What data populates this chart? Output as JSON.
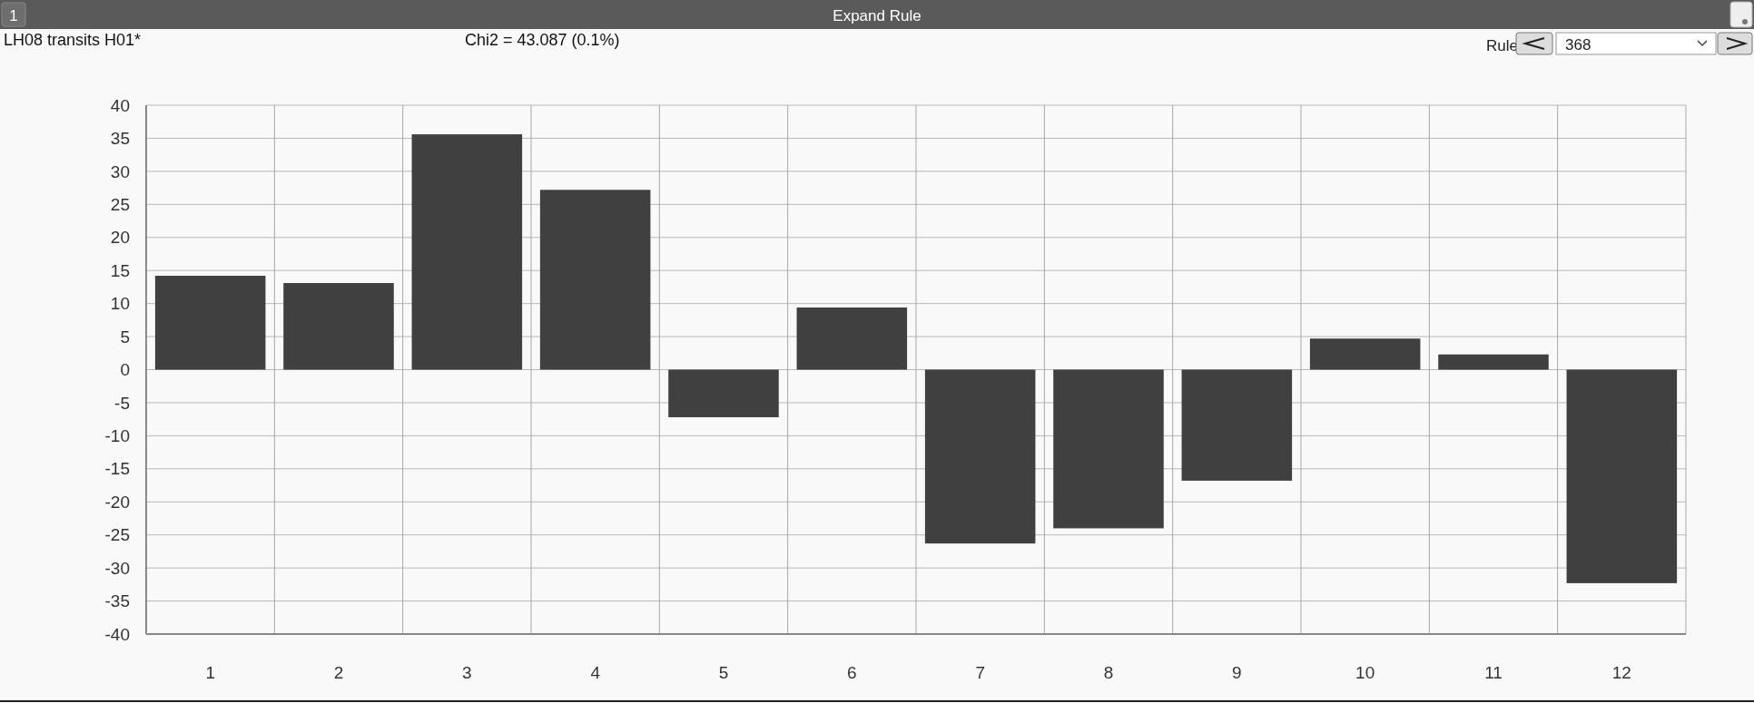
{
  "chart_data": {
    "type": "bar",
    "title": "LH08 transits H01*",
    "subtitle": "Chi2 = 43.087 (0.1%)",
    "annotations": [
      "1",
      "Expand Rule",
      "Rule",
      "368"
    ],
    "categories": [
      "1",
      "2",
      "3",
      "4",
      "5",
      "6",
      "7",
      "8",
      "9",
      "10",
      "11",
      "12"
    ],
    "values": [
      14.2,
      13.1,
      35.6,
      27.2,
      -7.2,
      9.4,
      -26.3,
      -24.0,
      -16.8,
      4.7,
      2.3,
      -32.3
    ],
    "color": "#404040",
    "ylim": [
      -40,
      40
    ],
    "yticks": [
      -40,
      -35,
      -30,
      -25,
      -20,
      -15,
      -10,
      -5,
      0,
      5,
      10,
      15,
      20,
      25,
      30,
      35,
      40
    ],
    "grid": true
  }
}
